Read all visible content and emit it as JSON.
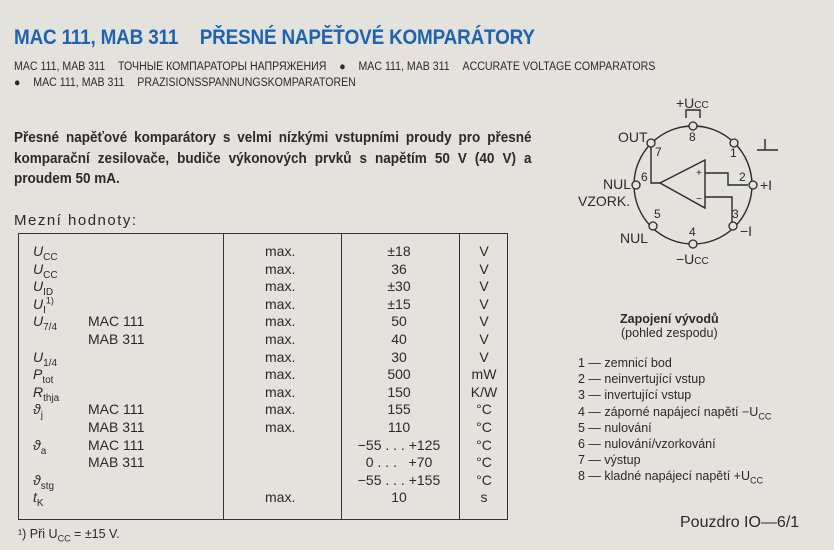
{
  "title": {
    "models": "MAC 111, MAB 311",
    "name": "PŘESNÉ NAPĚŤOVÉ KOMPARÁTORY"
  },
  "subtitles": [
    {
      "models": "MAC 111, MAB 311",
      "text": "ТОЧНЫЕ КОМПАРАТОРЫ НАПРЯЖЕНИЯ"
    },
    {
      "models": "MAC 111, MAB 311",
      "text": "ACCURATE VOLTAGE COMPARATORS"
    },
    {
      "models": "MAC 111, MAB 311",
      "text": "PRÄZISIONSSPANNUNGSKOMPARATOREN"
    }
  ],
  "bullet": "●",
  "intro": "Přesné napěťové komparátory s velmi nízkými vstupními proudy pro přesné komparační zesilovače, budiče výkonových prvků s napětím 50 V (40 V) a proudem 50 mA.",
  "section_heading": "Mezní hodnoty:",
  "limits": [
    {
      "sym": "U",
      "sub": "CC",
      "sup": "",
      "model": "",
      "lim": "max.",
      "value": "±18",
      "unit": "V"
    },
    {
      "sym": "U",
      "sub": "CC",
      "sup": "",
      "model": "",
      "lim": "max.",
      "value": "36",
      "unit": "V"
    },
    {
      "sym": "U",
      "sub": "ID",
      "sup": "",
      "model": "",
      "lim": "max.",
      "value": "±30",
      "unit": "V"
    },
    {
      "sym": "U",
      "sub": "I",
      "sup": "1)",
      "model": "",
      "lim": "max.",
      "value": "±15",
      "unit": "V"
    },
    {
      "sym": "U",
      "sub": "7/4",
      "sup": "",
      "model": "MAC 111",
      "lim": "max.",
      "value": "50",
      "unit": "V"
    },
    {
      "sym": "",
      "sub": "",
      "sup": "",
      "model": "MAB 311",
      "lim": "max.",
      "value": "40",
      "unit": "V"
    },
    {
      "sym": "U",
      "sub": "1/4",
      "sup": "",
      "model": "",
      "lim": "max.",
      "value": "30",
      "unit": "V"
    },
    {
      "sym": "P",
      "sub": "tot",
      "sup": "",
      "model": "",
      "lim": "max.",
      "value": "500",
      "unit": "mW"
    },
    {
      "sym": "R",
      "sub": "thja",
      "sup": "",
      "model": "",
      "lim": "max.",
      "value": "150",
      "unit": "K/W"
    },
    {
      "sym": "ϑ",
      "sub": "j",
      "sup": "",
      "model": "MAC 111",
      "lim": "max.",
      "value": "155",
      "unit": "°C"
    },
    {
      "sym": "",
      "sub": "",
      "sup": "",
      "model": "MAB 311",
      "lim": "max.",
      "value": "110",
      "unit": "°C"
    },
    {
      "sym": "ϑ",
      "sub": "a",
      "sup": "",
      "model": "MAC 111",
      "lim": "",
      "value": "−55 . . . +125",
      "unit": "°C"
    },
    {
      "sym": "",
      "sub": "",
      "sup": "",
      "model": "MAB 311",
      "lim": "",
      "value": "0 . . .   +70",
      "unit": "°C"
    },
    {
      "sym": "ϑ",
      "sub": "stg",
      "sup": "",
      "model": "",
      "lim": "",
      "value": "−55 . . . +155",
      "unit": "°C"
    },
    {
      "sym": "t",
      "sub": "K",
      "sup": "",
      "model": "",
      "lim": "max.",
      "value": "10",
      "unit": "s"
    }
  ],
  "footnote": "¹)  Při  U",
  "footnote_sub": "CC",
  "footnote_tail": " = ±15 V.",
  "diagram": {
    "pin_numbers": [
      "1",
      "2",
      "3",
      "4",
      "5",
      "6",
      "7",
      "8"
    ],
    "labels": {
      "vcc_pos": "+U",
      "vcc_neg": "−U",
      "cc": "CC",
      "out": "OUT",
      "nul6": "NUL",
      "vzork": "VZORK.",
      "nul5": "NUL",
      "in_pos": "+I",
      "in_neg": "−I",
      "plus": "+",
      "minus": "−"
    },
    "caption": "Zapojení vývodů",
    "caption_sub": "(pohled zespodu)"
  },
  "pins": [
    "1 — zemnicí bod",
    "2 — neinvertující vstup",
    "3 — invertující vstup",
    "4 — záporné napájecí napětí −U",
    "5 — nulování",
    "6 — nulování/vzorkování",
    "7 — výstup",
    "8 — kladné napájecí napětí +U"
  ],
  "pin_sub": "CC",
  "package": "Pouzdro IO—6/1",
  "colors": {
    "title": "#1f63b0",
    "paper": "#e4e2dc",
    "ink": "#2a2a2a"
  }
}
